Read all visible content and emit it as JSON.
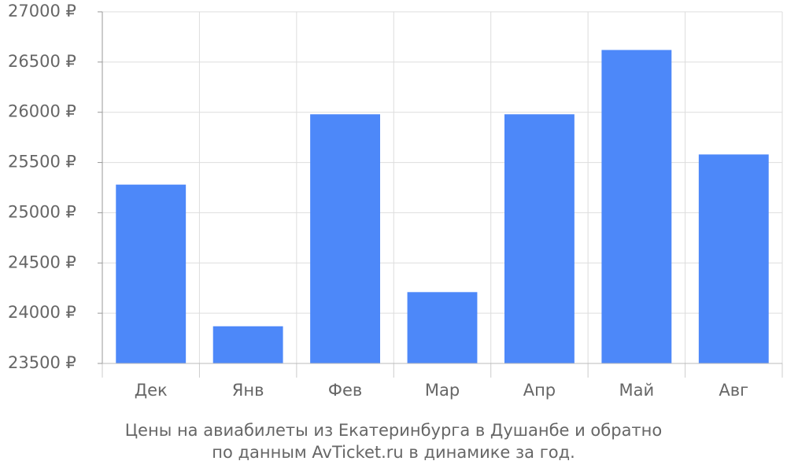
{
  "chart_data": {
    "type": "bar",
    "caption": [
      "Цены на авиабилеты из Екатеринбурга в Душанбе и обратно",
      "по данным AvTicket.ru в динамике за год."
    ],
    "categories": [
      "Дек",
      "Янв",
      "Фев",
      "Мар",
      "Апр",
      "Май",
      "Авг"
    ],
    "values": [
      25280,
      23870,
      25980,
      24210,
      25980,
      26620,
      25580
    ],
    "color": "#4d88f9",
    "ylim": [
      23500,
      27000
    ],
    "yticks": [
      {
        "value": 23500,
        "label": "23500 ₽"
      },
      {
        "value": 24000,
        "label": "24000 ₽"
      },
      {
        "value": 24500,
        "label": "24500 ₽"
      },
      {
        "value": 25000,
        "label": "25000 ₽"
      },
      {
        "value": 25500,
        "label": "25500 ₽"
      },
      {
        "value": 26000,
        "label": "26000 ₽"
      },
      {
        "value": 26500,
        "label": "26500 ₽"
      },
      {
        "value": 27000,
        "label": "27000 ₽"
      }
    ],
    "grid": true
  }
}
